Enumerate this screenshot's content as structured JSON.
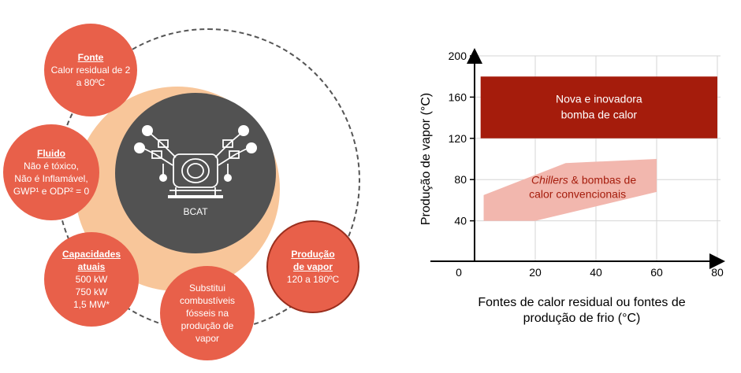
{
  "diagram": {
    "center_label": "BCAT",
    "bubbles": {
      "fonte": {
        "title": "Fonte",
        "lines": [
          "Calor residual de 2",
          "a 80ºC"
        ]
      },
      "fluido": {
        "title": "Fluido",
        "lines": [
          "Não é tóxico,",
          "Não é Inflamável,",
          "GWP¹ e ODP² = 0"
        ]
      },
      "capacidades": {
        "title_lines": [
          "Capacidades",
          "atuais"
        ],
        "lines": [
          "500 kW",
          "750 kW",
          "1,5 MW*"
        ]
      },
      "substitui": {
        "lines": [
          "Substitui",
          "combustíveis",
          "fósseis na",
          "produção de",
          "vapor"
        ]
      },
      "producao": {
        "title_lines": [
          "Produção",
          "de vapor"
        ],
        "lines": [
          "120 a 180ºC"
        ]
      }
    }
  },
  "chart_data": {
    "type": "area",
    "xlabel_lines": [
      "Fontes de calor residual ou fontes de",
      "produção de frio  (°C)"
    ],
    "ylabel": "Produção de vapor (°C)",
    "xlim": [
      0,
      80
    ],
    "ylim": [
      0,
      200
    ],
    "x_ticks": [
      "0",
      "20",
      "40",
      "60",
      "80"
    ],
    "y_ticks": [
      "40",
      "80",
      "120",
      "160",
      "200"
    ],
    "grid": true,
    "colors": {
      "dark_band": "#a51c0c",
      "light_band": "#f2b7ae",
      "light_text": "#a51c0c"
    },
    "regions": [
      {
        "name_lines": [
          "Nova e inovadora",
          "bomba de calor"
        ],
        "polygon": [
          [
            2,
            120
          ],
          [
            80,
            120
          ],
          [
            80,
            180
          ],
          [
            2,
            180
          ]
        ]
      },
      {
        "name_italic": "Chillers",
        "name_rest": " & bombas de",
        "name_line2": "calor convencionais",
        "polygon": [
          [
            3,
            40
          ],
          [
            20,
            40
          ],
          [
            60,
            68
          ],
          [
            60,
            100
          ],
          [
            30,
            96
          ],
          [
            3,
            65
          ]
        ]
      }
    ]
  }
}
